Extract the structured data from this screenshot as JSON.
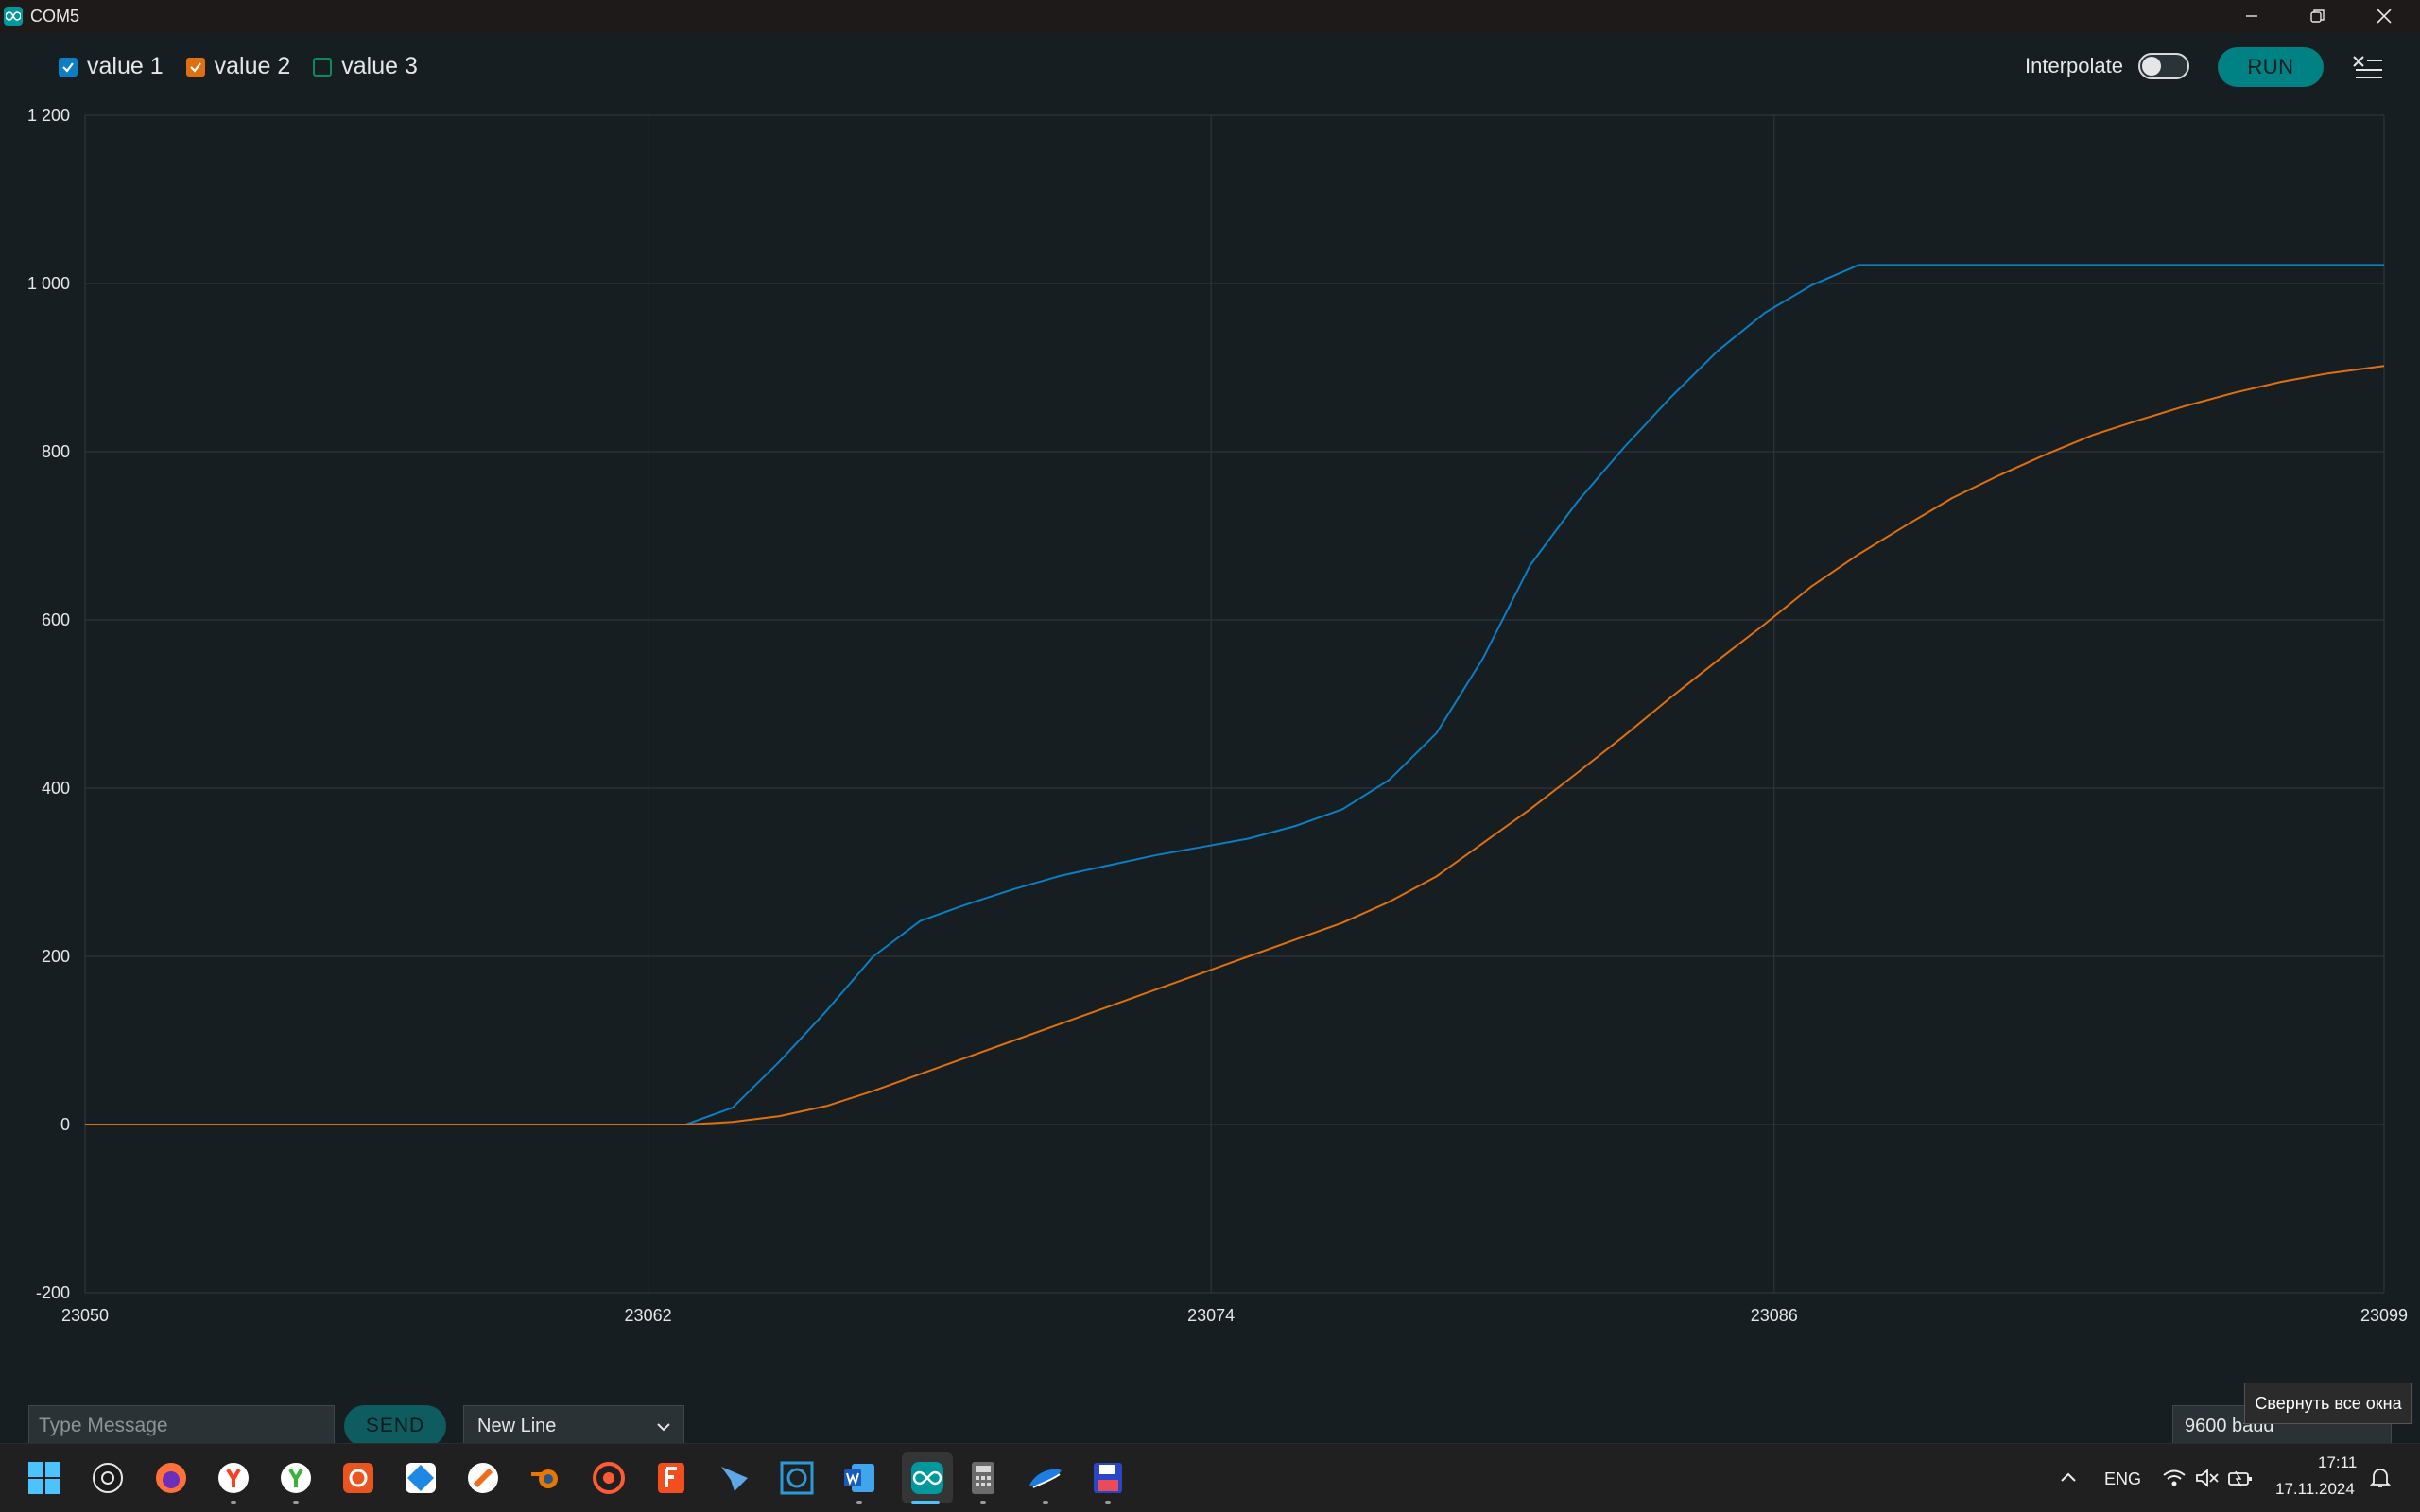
{
  "window": {
    "title": "COM5",
    "minimize_icon": "minimize-icon",
    "restore_icon": "restore-icon",
    "close_icon": "close-icon"
  },
  "toolbar": {
    "legend": [
      {
        "label": "value 1",
        "checked": true,
        "color": "#0b7ec4"
      },
      {
        "label": "value 2",
        "checked": true,
        "color": "#e0700f"
      },
      {
        "label": "value 3",
        "checked": false,
        "color": "#0b8a5c"
      }
    ],
    "interpolate_label": "Interpolate",
    "interpolate_on": false,
    "run_label": "RUN",
    "clear_icon": "clear-list-icon"
  },
  "chart_data": {
    "type": "line",
    "x_ticks": [
      "23050",
      "23062",
      "23074",
      "23086",
      "23099"
    ],
    "y_ticks": [
      "1 200",
      "1 000",
      "800",
      "600",
      "400",
      "200",
      "0",
      "-200"
    ],
    "xlim": [
      23050,
      23099
    ],
    "ylim": [
      -200,
      1200
    ],
    "grid": true,
    "series": [
      {
        "name": "value 1",
        "color": "#0b7ec4",
        "x": [
          23050,
          23062.8,
          23063.8,
          23064.8,
          23065.8,
          23066.8,
          23067.8,
          23068.8,
          23069.8,
          23070.8,
          23071.8,
          23072.8,
          23073.8,
          23074.8,
          23075.8,
          23076.8,
          23077.8,
          23078.8,
          23079.8,
          23080.8,
          23081.8,
          23082.8,
          23083.8,
          23084.8,
          23085.8,
          23086.8,
          23087.8,
          23099
        ],
        "y": [
          0,
          0,
          20,
          75,
          135,
          200,
          242,
          262,
          280,
          296,
          308,
          320,
          330,
          340,
          355,
          375,
          410,
          465,
          555,
          665,
          740,
          805,
          865,
          920,
          965,
          998,
          1022,
          1022
        ]
      },
      {
        "name": "value 2",
        "color": "#e0700f",
        "x": [
          23050,
          23062.8,
          23063.8,
          23064.8,
          23065.8,
          23066.8,
          23067.8,
          23068.8,
          23069.8,
          23070.8,
          23071.8,
          23072.8,
          23073.8,
          23074.8,
          23075.8,
          23076.8,
          23077.8,
          23078.8,
          23079.8,
          23080.8,
          23081.8,
          23082.8,
          23083.8,
          23084.8,
          23085.8,
          23086.8,
          23087.8,
          23088.8,
          23089.8,
          23090.8,
          23091.8,
          23092.8,
          23093.8,
          23094.8,
          23095.8,
          23096.8,
          23097.8,
          23099
        ],
        "y": [
          0,
          0,
          3,
          10,
          22,
          40,
          60,
          80,
          100,
          120,
          140,
          160,
          180,
          200,
          220,
          240,
          265,
          295,
          335,
          375,
          418,
          462,
          508,
          552,
          595,
          640,
          678,
          712,
          745,
          772,
          797,
          820,
          838,
          855,
          870,
          883,
          893,
          902
        ]
      }
    ]
  },
  "bottom": {
    "message_placeholder": "Type Message",
    "send_label": "SEND",
    "line_ending": "New Line",
    "baud": "9600 baud",
    "tooltip": "Свернуть все окна"
  },
  "taskbar": {
    "icons": [
      "windows-start-icon",
      "obs-icon",
      "firefox-icon",
      "yandex-browser-icon",
      "y-app-icon",
      "ubuntu-icon",
      "blue-diamond-icon",
      "blender-orange-icon",
      "blender-icon",
      "gear-app-icon",
      "figma-icon",
      "kite-icon",
      "ksp-icon",
      "word-icon",
      "arduino-icon",
      "calculator-icon",
      "cloud-icon",
      "save-app-icon"
    ],
    "lang": "ENG",
    "time": "17:11",
    "date": "17.11.2024"
  }
}
